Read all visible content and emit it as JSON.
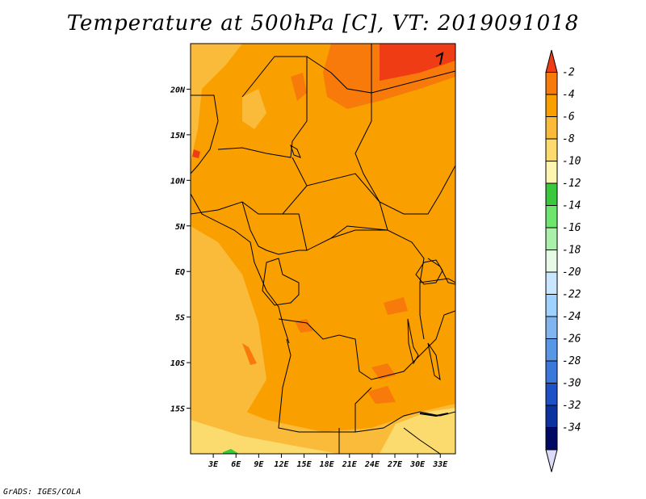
{
  "title": "Temperature at 500hPa [C], VT: 2019091018",
  "credit": "GrADS: IGES/COLA",
  "map": {
    "variable": "Temperature",
    "level": "500hPa",
    "units": "C",
    "valid_time": "2019091018",
    "lon_range": [
      0,
      35
    ],
    "lat_range": [
      -20,
      25
    ],
    "lat_ticks": [
      {
        "value": 20,
        "label": "20N"
      },
      {
        "value": 15,
        "label": "15N"
      },
      {
        "value": 10,
        "label": "10N"
      },
      {
        "value": 5,
        "label": "5N"
      },
      {
        "value": 0,
        "label": "EQ"
      },
      {
        "value": -5,
        "label": "5S"
      },
      {
        "value": -10,
        "label": "10S"
      },
      {
        "value": -15,
        "label": "15S"
      }
    ],
    "lon_ticks": [
      {
        "value": 3,
        "label": "3E"
      },
      {
        "value": 6,
        "label": "6E"
      },
      {
        "value": 9,
        "label": "9E"
      },
      {
        "value": 12,
        "label": "12E"
      },
      {
        "value": 15,
        "label": "15E"
      },
      {
        "value": 18,
        "label": "18E"
      },
      {
        "value": 21,
        "label": "21E"
      },
      {
        "value": 24,
        "label": "24E"
      },
      {
        "value": 27,
        "label": "27E"
      },
      {
        "value": 30,
        "label": "30E"
      },
      {
        "value": 33,
        "label": "33E"
      }
    ]
  },
  "colorbar": {
    "levels": [
      "-2",
      "-4",
      "-6",
      "-8",
      "-10",
      "-12",
      "-14",
      "-16",
      "-18",
      "-20",
      "-22",
      "-24",
      "-26",
      "-28",
      "-30",
      "-32",
      "-34"
    ],
    "colors": [
      "#f03c14",
      "#f77a0a",
      "#f9a000",
      "#fabb3a",
      "#fbdb6e",
      "#fdf5b0",
      "#3cc83c",
      "#6ee66e",
      "#aaf0aa",
      "#e6fae6",
      "#c8e6ff",
      "#a0d2ff",
      "#82b4f0",
      "#5a96e6",
      "#3c78dc",
      "#1e50c8",
      "#0c32a0",
      "#000a64",
      "#dcdcfa"
    ]
  }
}
